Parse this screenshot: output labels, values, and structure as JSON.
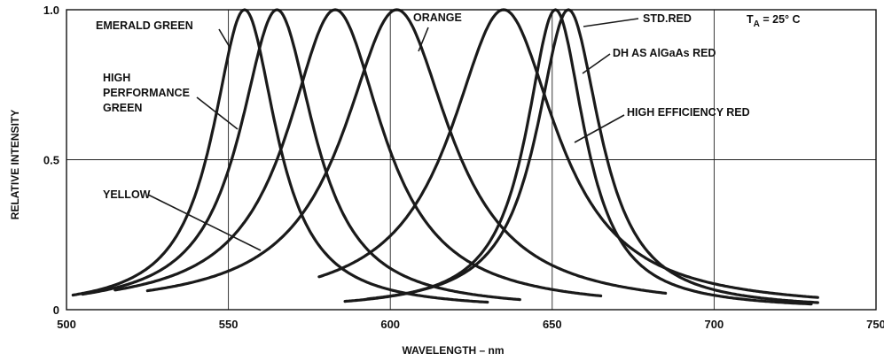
{
  "chart_data": {
    "type": "line",
    "title": "",
    "xlabel": "WAVELENGTH – nm",
    "ylabel": "RELATIVE INTENSITY",
    "xlim": [
      500,
      750
    ],
    "ylim": [
      0,
      1.0
    ],
    "x_ticks": [
      "500",
      "550",
      "600",
      "650",
      "700",
      "750"
    ],
    "y_ticks": [
      "0",
      "0.5",
      "1.0"
    ],
    "grid": true,
    "condition_label": {
      "prefix": "T",
      "subscript": "A",
      "suffix": " = 25° C"
    },
    "series": [
      {
        "name": "EMERALD GREEN",
        "peak": 555,
        "fwhm": 24,
        "x_range": [
          502,
          630
        ]
      },
      {
        "name": "HIGH PERFORMANCE GREEN",
        "peak": 565,
        "fwhm": 28,
        "x_range": [
          505,
          640
        ]
      },
      {
        "name": "YELLOW",
        "peak": 583,
        "fwhm": 36,
        "x_range": [
          515,
          665
        ]
      },
      {
        "name": "ORANGE",
        "peak": 602,
        "fwhm": 40,
        "x_range": [
          525,
          685
        ]
      },
      {
        "name": "HIGH EFFICIENCY RED",
        "peak": 635,
        "fwhm": 40,
        "x_range": [
          578,
          732
        ]
      },
      {
        "name": "DH AS AlGaAs RED",
        "peak": 651,
        "fwhm": 22,
        "x_range": [
          586,
          730
        ]
      },
      {
        "name": "STD.RED",
        "peak": 655,
        "fwhm": 24,
        "x_range": [
          593,
          732
        ]
      }
    ],
    "annotations": [
      {
        "lines": [
          "EMERALD GREEN"
        ]
      },
      {
        "lines": [
          "HIGH",
          "PERFORMANCE",
          "GREEN"
        ]
      },
      {
        "lines": [
          "YELLOW"
        ]
      },
      {
        "lines": [
          "ORANGE"
        ]
      },
      {
        "lines": [
          "STD.RED"
        ]
      },
      {
        "lines": [
          "DH AS AlGaAs RED"
        ]
      },
      {
        "lines": [
          "HIGH EFFICIENCY RED"
        ]
      }
    ]
  }
}
